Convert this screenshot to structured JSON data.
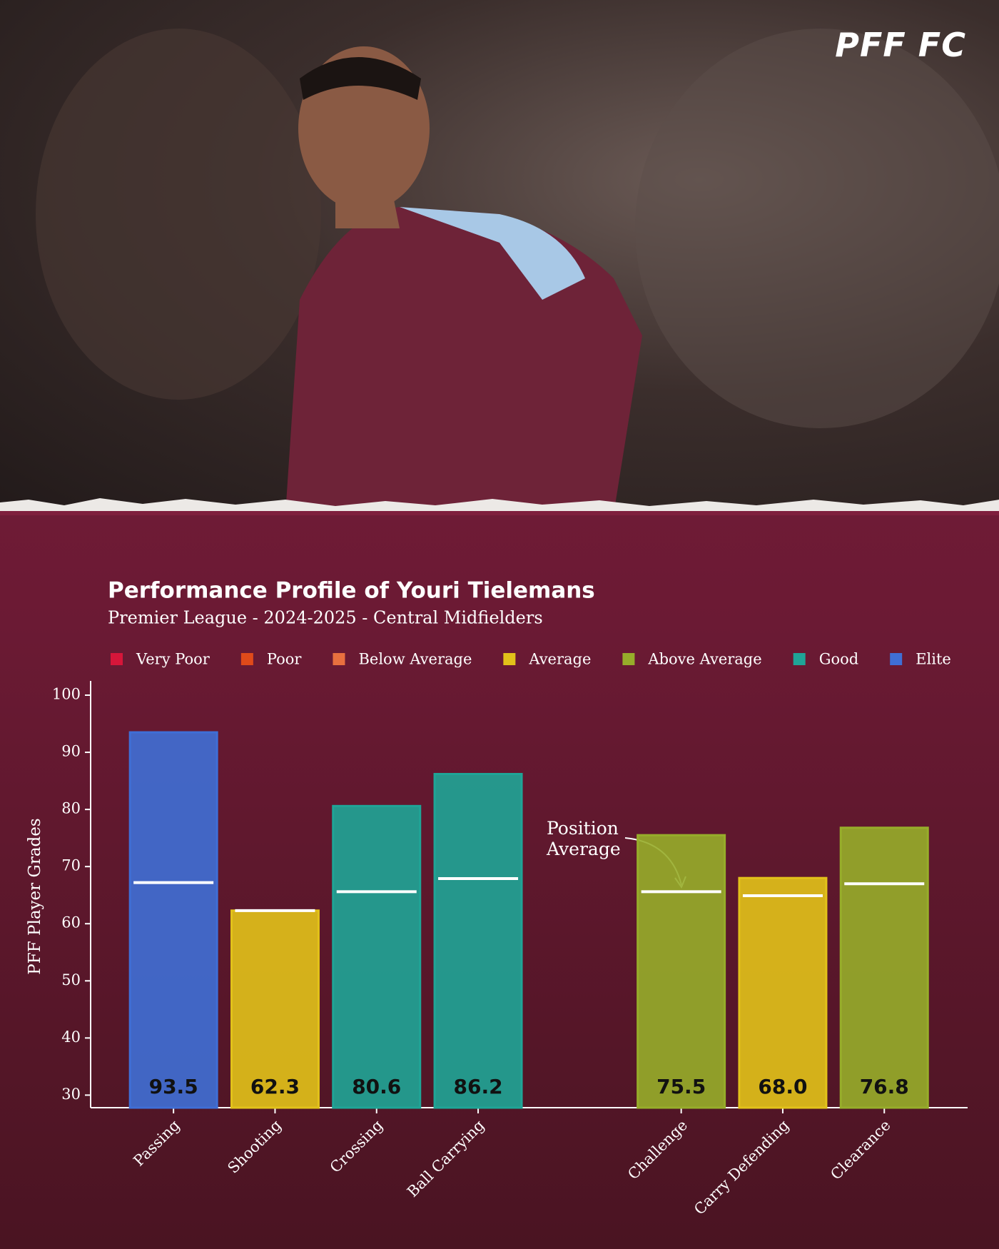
{
  "brand": "PFF FC",
  "chart_data": {
    "type": "bar",
    "title": "Performance Profile of Youri Tielemans",
    "subtitle": "Premier League - 2024-2025 - Central Midfielders",
    "y_label": "PFF Player Grades",
    "annotation": "Position Average",
    "legend": [
      {
        "name": "Very Poor",
        "color": "#d6163a"
      },
      {
        "name": "Poor",
        "color": "#e04a1a"
      },
      {
        "name": "Below Average",
        "color": "#e8703f"
      },
      {
        "name": "Average",
        "color": "#e2c21a"
      },
      {
        "name": "Above Average",
        "color": "#97ad2a"
      },
      {
        "name": "Good",
        "color": "#1fa597"
      },
      {
        "name": "Elite",
        "color": "#3f6fd6"
      }
    ],
    "categories": [
      "Passing",
      "Shooting",
      "Crossing",
      "Ball Carrying",
      null,
      "Challenge",
      "Carry Defending",
      "Clearance"
    ],
    "values": [
      93.5,
      62.3,
      80.6,
      86.2,
      null,
      75.5,
      68.0,
      76.8
    ],
    "value_labels": [
      "93.5",
      "62.3",
      "80.6",
      "86.2",
      null,
      "75.5",
      "68.0",
      "76.8"
    ],
    "colors": [
      "#3f6fd6",
      "#e2c21a",
      "#1fa597",
      "#1fa597",
      null,
      "#97ad2a",
      "#e2c21a",
      "#97ad2a"
    ],
    "position_average": [
      67.2,
      62.3,
      65.6,
      67.9,
      null,
      65.6,
      64.9,
      67.0
    ],
    "ylim": [
      27.8,
      102.5
    ],
    "yticks": [
      30,
      40,
      50,
      60,
      70,
      80,
      90,
      100
    ]
  }
}
